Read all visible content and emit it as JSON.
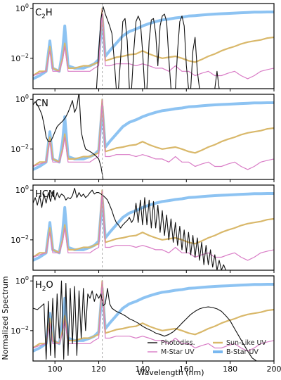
{
  "chart_data": {
    "type": "line",
    "xlabel": "Wavelength (nm)",
    "ylabel": "Normalized Spectrum",
    "xlim": [
      90,
      200
    ],
    "x_ticks": [
      100,
      120,
      140,
      160,
      180,
      200
    ],
    "x_tick_labels": [
      "100",
      "120",
      "140",
      "160",
      "180",
      "200"
    ],
    "y_scale": "log",
    "ylim": [
      0.0006,
      1.6
    ],
    "y_ticks": [
      0.01,
      1
    ],
    "y_tick_labels": [
      {
        "base": "10",
        "exp": "−2"
      },
      {
        "base": "10",
        "exp": "0"
      }
    ],
    "reference_line": {
      "x": 121.6,
      "style": "dashed",
      "color": "#aaaaaa"
    },
    "colors": {
      "photodiss": "#111111",
      "m_star": "#d97cc6",
      "sun_like": "#d9b86a",
      "b_star": "#79b8f0"
    },
    "legend": {
      "placement": "lower-right",
      "entries": [
        {
          "label": "Photodiss.",
          "series": "photodiss"
        },
        {
          "label": "Sun-Like UV",
          "series": "sun_like"
        },
        {
          "label": "M-Star UV",
          "series": "m_star"
        },
        {
          "label": "B-Star UV",
          "series": "b_star"
        }
      ]
    },
    "stellar_spectra": {
      "b_star": {
        "x": [
          90,
          93,
          96,
          97.7,
          99,
          102,
          103.5,
          104.5,
          106,
          109,
          113,
          116,
          118,
          120,
          121.6,
          123,
          125,
          128,
          131,
          134,
          137,
          140,
          143,
          146,
          149,
          152,
          155,
          158,
          161,
          164,
          167,
          170,
          173,
          176,
          179,
          182,
          185,
          188,
          191,
          194,
          197,
          200
        ],
        "y": [
          0.0015,
          0.002,
          0.003,
          0.05,
          0.004,
          0.003,
          0.02,
          0.2,
          0.005,
          0.004,
          0.004,
          0.005,
          0.006,
          0.009,
          0.5,
          0.012,
          0.02,
          0.04,
          0.08,
          0.12,
          0.15,
          0.2,
          0.25,
          0.3,
          0.35,
          0.38,
          0.42,
          0.45,
          0.5,
          0.52,
          0.55,
          0.58,
          0.6,
          0.62,
          0.64,
          0.66,
          0.68,
          0.7,
          0.72,
          0.72,
          0.73,
          0.73
        ]
      },
      "sun_like": {
        "x": [
          90,
          93,
          96,
          97.7,
          99,
          102,
          103.5,
          104.5,
          106,
          109,
          113,
          116,
          118,
          120,
          121.6,
          123,
          125,
          128,
          131,
          134,
          137,
          140,
          143,
          146,
          149,
          152,
          155,
          158,
          161,
          164,
          167,
          170,
          173,
          176,
          179,
          182,
          185,
          188,
          191,
          194,
          197,
          200
        ],
        "y": [
          0.002,
          0.003,
          0.003,
          0.03,
          0.004,
          0.003,
          0.01,
          0.04,
          0.004,
          0.004,
          0.005,
          0.005,
          0.006,
          0.007,
          1.0,
          0.008,
          0.009,
          0.011,
          0.012,
          0.014,
          0.015,
          0.02,
          0.015,
          0.012,
          0.01,
          0.011,
          0.012,
          0.01,
          0.008,
          0.007,
          0.009,
          0.012,
          0.015,
          0.02,
          0.025,
          0.03,
          0.038,
          0.045,
          0.05,
          0.055,
          0.065,
          0.07
        ]
      },
      "m_star": {
        "x": [
          90,
          93,
          96,
          97.7,
          99,
          102,
          103.5,
          104.5,
          106,
          109,
          113,
          116,
          118,
          120,
          121.6,
          123,
          125,
          128,
          131,
          134,
          137,
          140,
          143,
          146,
          149,
          152,
          155,
          158,
          161,
          164,
          167,
          170,
          173,
          176,
          179,
          182,
          185,
          188,
          191,
          194,
          197,
          200
        ],
        "y": [
          0.002,
          0.0025,
          0.003,
          0.02,
          0.003,
          0.003,
          0.008,
          0.03,
          0.003,
          0.003,
          0.003,
          0.003,
          0.004,
          0.005,
          1.0,
          0.005,
          0.005,
          0.006,
          0.006,
          0.006,
          0.005,
          0.006,
          0.005,
          0.004,
          0.004,
          0.003,
          0.005,
          0.003,
          0.003,
          0.002,
          0.0025,
          0.003,
          0.002,
          0.002,
          0.0025,
          0.003,
          0.002,
          0.0015,
          0.002,
          0.003,
          0.0035,
          0.004
        ]
      }
    },
    "panels": [
      {
        "label": {
          "base": "C",
          "sub": "2",
          "rest": "H"
        },
        "photodiss": {
          "x": [
            90,
            119,
            120,
            121,
            122,
            123,
            124,
            125,
            126,
            127,
            128,
            129,
            130,
            131,
            132,
            133,
            134,
            135,
            136,
            137,
            138,
            139,
            140,
            141,
            142,
            143,
            144,
            145,
            146,
            147,
            148,
            149,
            150,
            151,
            152,
            153,
            154,
            155,
            156,
            157,
            158,
            159,
            160,
            161,
            162,
            163,
            164,
            165,
            166,
            167,
            168,
            169,
            170,
            171,
            172,
            173,
            174,
            175,
            176,
            177,
            200
          ],
          "y": [
            0.0003,
            0.0003,
            0.02,
            0.4,
            1.2,
            0.6,
            0.35,
            0.2,
            0.1,
            0.01,
            0.0003,
            0.0003,
            0.01,
            0.3,
            0.4,
            0.05,
            0.0003,
            0.0003,
            0.02,
            0.3,
            0.5,
            0.3,
            0.02,
            0.0003,
            0.0003,
            0.05,
            0.35,
            0.4,
            0.1,
            0.005,
            0.2,
            0.5,
            0.6,
            0.3,
            0.01,
            0.0003,
            0.0003,
            0.0003,
            0.02,
            0.3,
            0.5,
            0.2,
            0.005,
            0.0003,
            0.0003,
            0.02,
            0.07,
            0.003,
            0.0003,
            0.0003,
            0.0003,
            0.0003,
            0.0003,
            0.0003,
            0.0003,
            0.0003,
            0.003,
            0.0003,
            0.0003,
            0.0003,
            0.0003
          ]
        }
      },
      {
        "label": {
          "base": "CN",
          "sub": "",
          "rest": ""
        },
        "photodiss": {
          "x": [
            90,
            91,
            92,
            93,
            94,
            95,
            96,
            97,
            98,
            99,
            100,
            101,
            102,
            103,
            104,
            105,
            106,
            107,
            108,
            109,
            110,
            111,
            112,
            113,
            114,
            115,
            116,
            117,
            118,
            119,
            120,
            121,
            122
          ],
          "y": [
            0.6,
            0.8,
            0.6,
            0.4,
            0.25,
            0.1,
            0.03,
            0.02,
            0.02,
            0.03,
            0.05,
            0.08,
            0.1,
            0.12,
            0.15,
            0.2,
            0.3,
            0.5,
            0.9,
            0.3,
            0.5,
            2.0,
            0.05,
            0.02,
            0.01,
            0.009,
            0.008,
            0.007,
            0.006,
            0.005,
            0.004,
            0.002,
            0.0003
          ]
        }
      },
      {
        "label": {
          "base": "HCN",
          "sub": "",
          "rest": ""
        },
        "photodiss": {
          "x": [
            90,
            91,
            92,
            93,
            94,
            95,
            96,
            97,
            98,
            99,
            100,
            101,
            102,
            103,
            104,
            105,
            106,
            107,
            108,
            109,
            110,
            111,
            112,
            113,
            114,
            115,
            116,
            117,
            118,
            119,
            120,
            121,
            122,
            123,
            124,
            125,
            126,
            127,
            128,
            129,
            130,
            131,
            132,
            133,
            134,
            135,
            136,
            137,
            138,
            139,
            140,
            141,
            142,
            143,
            144,
            145,
            146,
            147,
            148,
            149,
            150,
            151,
            152,
            153,
            154,
            155,
            156,
            157,
            158,
            159,
            160,
            161,
            162,
            163,
            164,
            165,
            166,
            167,
            168,
            169,
            170,
            171,
            172,
            173,
            174,
            175,
            176,
            177,
            178,
            200
          ],
          "y": [
            0.3,
            0.5,
            0.25,
            0.6,
            0.2,
            0.7,
            0.3,
            0.8,
            0.35,
            0.9,
            0.4,
            0.8,
            0.5,
            0.7,
            0.6,
            0.4,
            0.5,
            0.45,
            0.6,
            1.2,
            0.5,
            0.8,
            0.55,
            0.7,
            0.5,
            0.6,
            0.8,
            1.0,
            0.7,
            0.8,
            0.8,
            0.7,
            0.6,
            0.5,
            0.4,
            0.25,
            0.15,
            0.08,
            0.05,
            0.04,
            0.03,
            0.04,
            0.05,
            0.06,
            0.08,
            0.05,
            0.07,
            0.3,
            0.05,
            0.4,
            0.04,
            0.5,
            0.04,
            0.4,
            0.03,
            0.35,
            0.03,
            0.25,
            0.02,
            0.15,
            0.015,
            0.1,
            0.01,
            0.07,
            0.008,
            0.05,
            0.006,
            0.035,
            0.004,
            0.025,
            0.003,
            0.02,
            0.0025,
            0.015,
            0.002,
            0.012,
            0.0015,
            0.008,
            0.001,
            0.006,
            0.001,
            0.004,
            0.0008,
            0.0025,
            0.0006,
            0.0015,
            0.0006,
            0.001,
            0.0006,
            0.0006
          ]
        }
      },
      {
        "label": {
          "base": "H",
          "sub": "2",
          "rest": "O"
        },
        "photodiss": {
          "x": [
            90,
            92,
            94,
            95,
            96,
            97,
            98,
            99,
            100,
            101,
            102,
            103,
            104,
            105,
            106,
            107,
            108,
            109,
            110,
            111,
            112,
            113,
            114,
            115,
            116,
            117,
            118,
            119,
            120,
            121,
            122,
            123,
            124,
            125,
            126,
            128,
            130,
            132,
            134,
            136,
            138,
            140,
            142,
            144,
            146,
            148,
            150,
            152,
            154,
            156,
            158,
            160,
            162,
            164,
            166,
            168,
            170,
            172,
            174,
            176,
            178,
            180,
            182,
            184,
            186,
            188,
            190,
            192
          ],
          "y": [
            0.08,
            0.07,
            0.1,
            0.12,
            0.0007,
            0.15,
            0.001,
            0.2,
            0.0008,
            0.3,
            0.005,
            1.0,
            0.0007,
            0.8,
            0.001,
            0.5,
            0.003,
            0.6,
            0.001,
            0.4,
            0.005,
            0.5,
            0.01,
            0.3,
            0.2,
            0.4,
            0.15,
            0.3,
            0.2,
            0.3,
            0.1,
            0.12,
            0.5,
            0.12,
            0.08,
            0.06,
            0.05,
            0.04,
            0.03,
            0.025,
            0.02,
            0.015,
            0.012,
            0.01,
            0.008,
            0.007,
            0.006,
            0.007,
            0.009,
            0.013,
            0.02,
            0.03,
            0.045,
            0.06,
            0.075,
            0.085,
            0.09,
            0.085,
            0.075,
            0.06,
            0.04,
            0.025,
            0.012,
            0.006,
            0.003,
            0.0015,
            0.0008,
            0.0006
          ]
        }
      }
    ]
  }
}
